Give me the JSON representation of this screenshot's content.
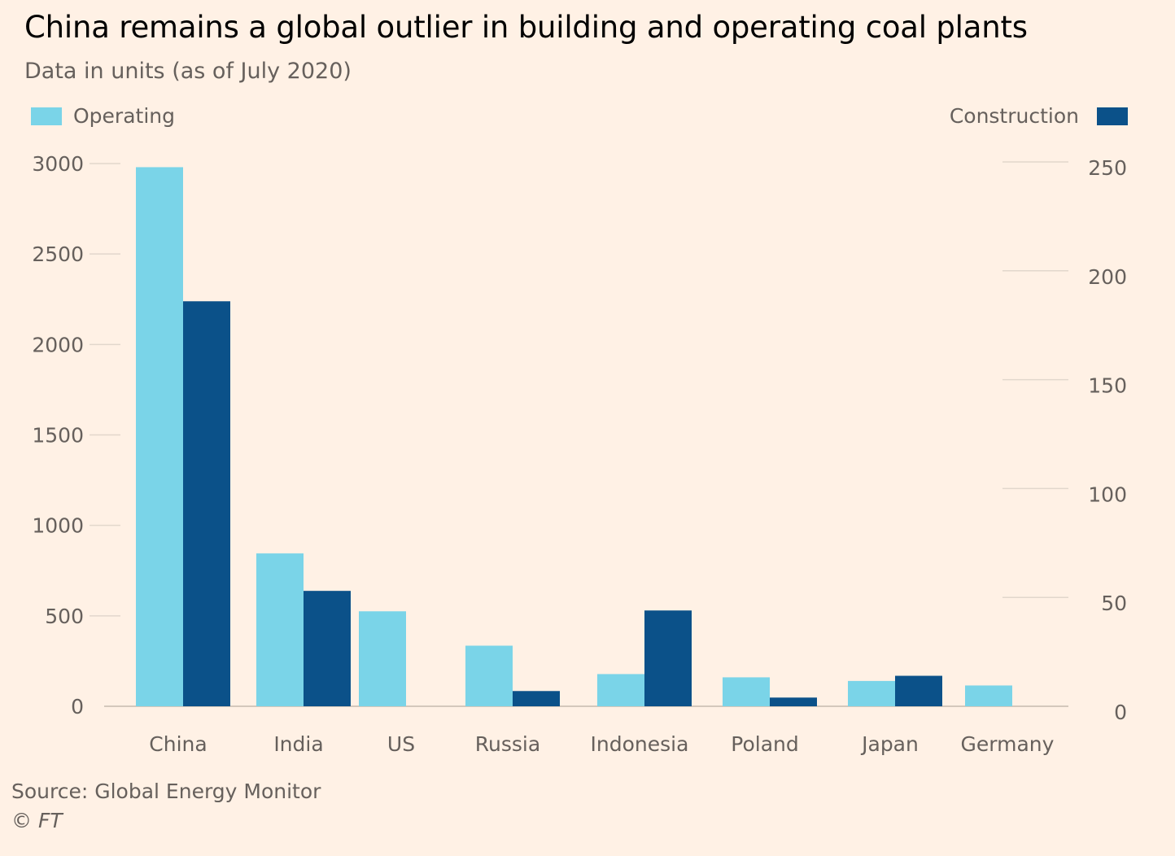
{
  "title": "China remains a global outlier in building and operating coal plants",
  "subtitle": "Data in units (as of July 2020)",
  "source": "Source: Global Energy Monitor",
  "credit": "© FT",
  "colors": {
    "background": "#fff1e5",
    "operating": "#7ad4e8",
    "construction": "#0b5189",
    "grid": "#e2d7cc",
    "axis_text": "#66605c"
  },
  "chart_data": {
    "type": "bar",
    "categories": [
      "China",
      "India",
      "US",
      "Russia",
      "Indonesia",
      "Poland",
      "Japan",
      "Germany"
    ],
    "series": [
      {
        "name": "Operating",
        "axis": "left",
        "color": "#7ad4e8",
        "values": [
          2980,
          845,
          525,
          335,
          178,
          160,
          140,
          115
        ]
      },
      {
        "name": "Construction",
        "axis": "right",
        "color": "#0b5189",
        "values": [
          186,
          53,
          0,
          7,
          44,
          4,
          14,
          0
        ]
      }
    ],
    "yleft": {
      "lim": [
        0,
        3000
      ],
      "ticks": [
        "0",
        "500",
        "1000",
        "1500",
        "2000",
        "2500",
        "3000"
      ]
    },
    "yright": {
      "lim": [
        0,
        250
      ],
      "ticks": [
        "0",
        "50",
        "100",
        "150",
        "200",
        "250"
      ]
    },
    "legend": {
      "operating_label": "Operating",
      "construction_label": "Construction",
      "operating_position": "top-left",
      "construction_position": "top-right"
    },
    "grid": true
  }
}
